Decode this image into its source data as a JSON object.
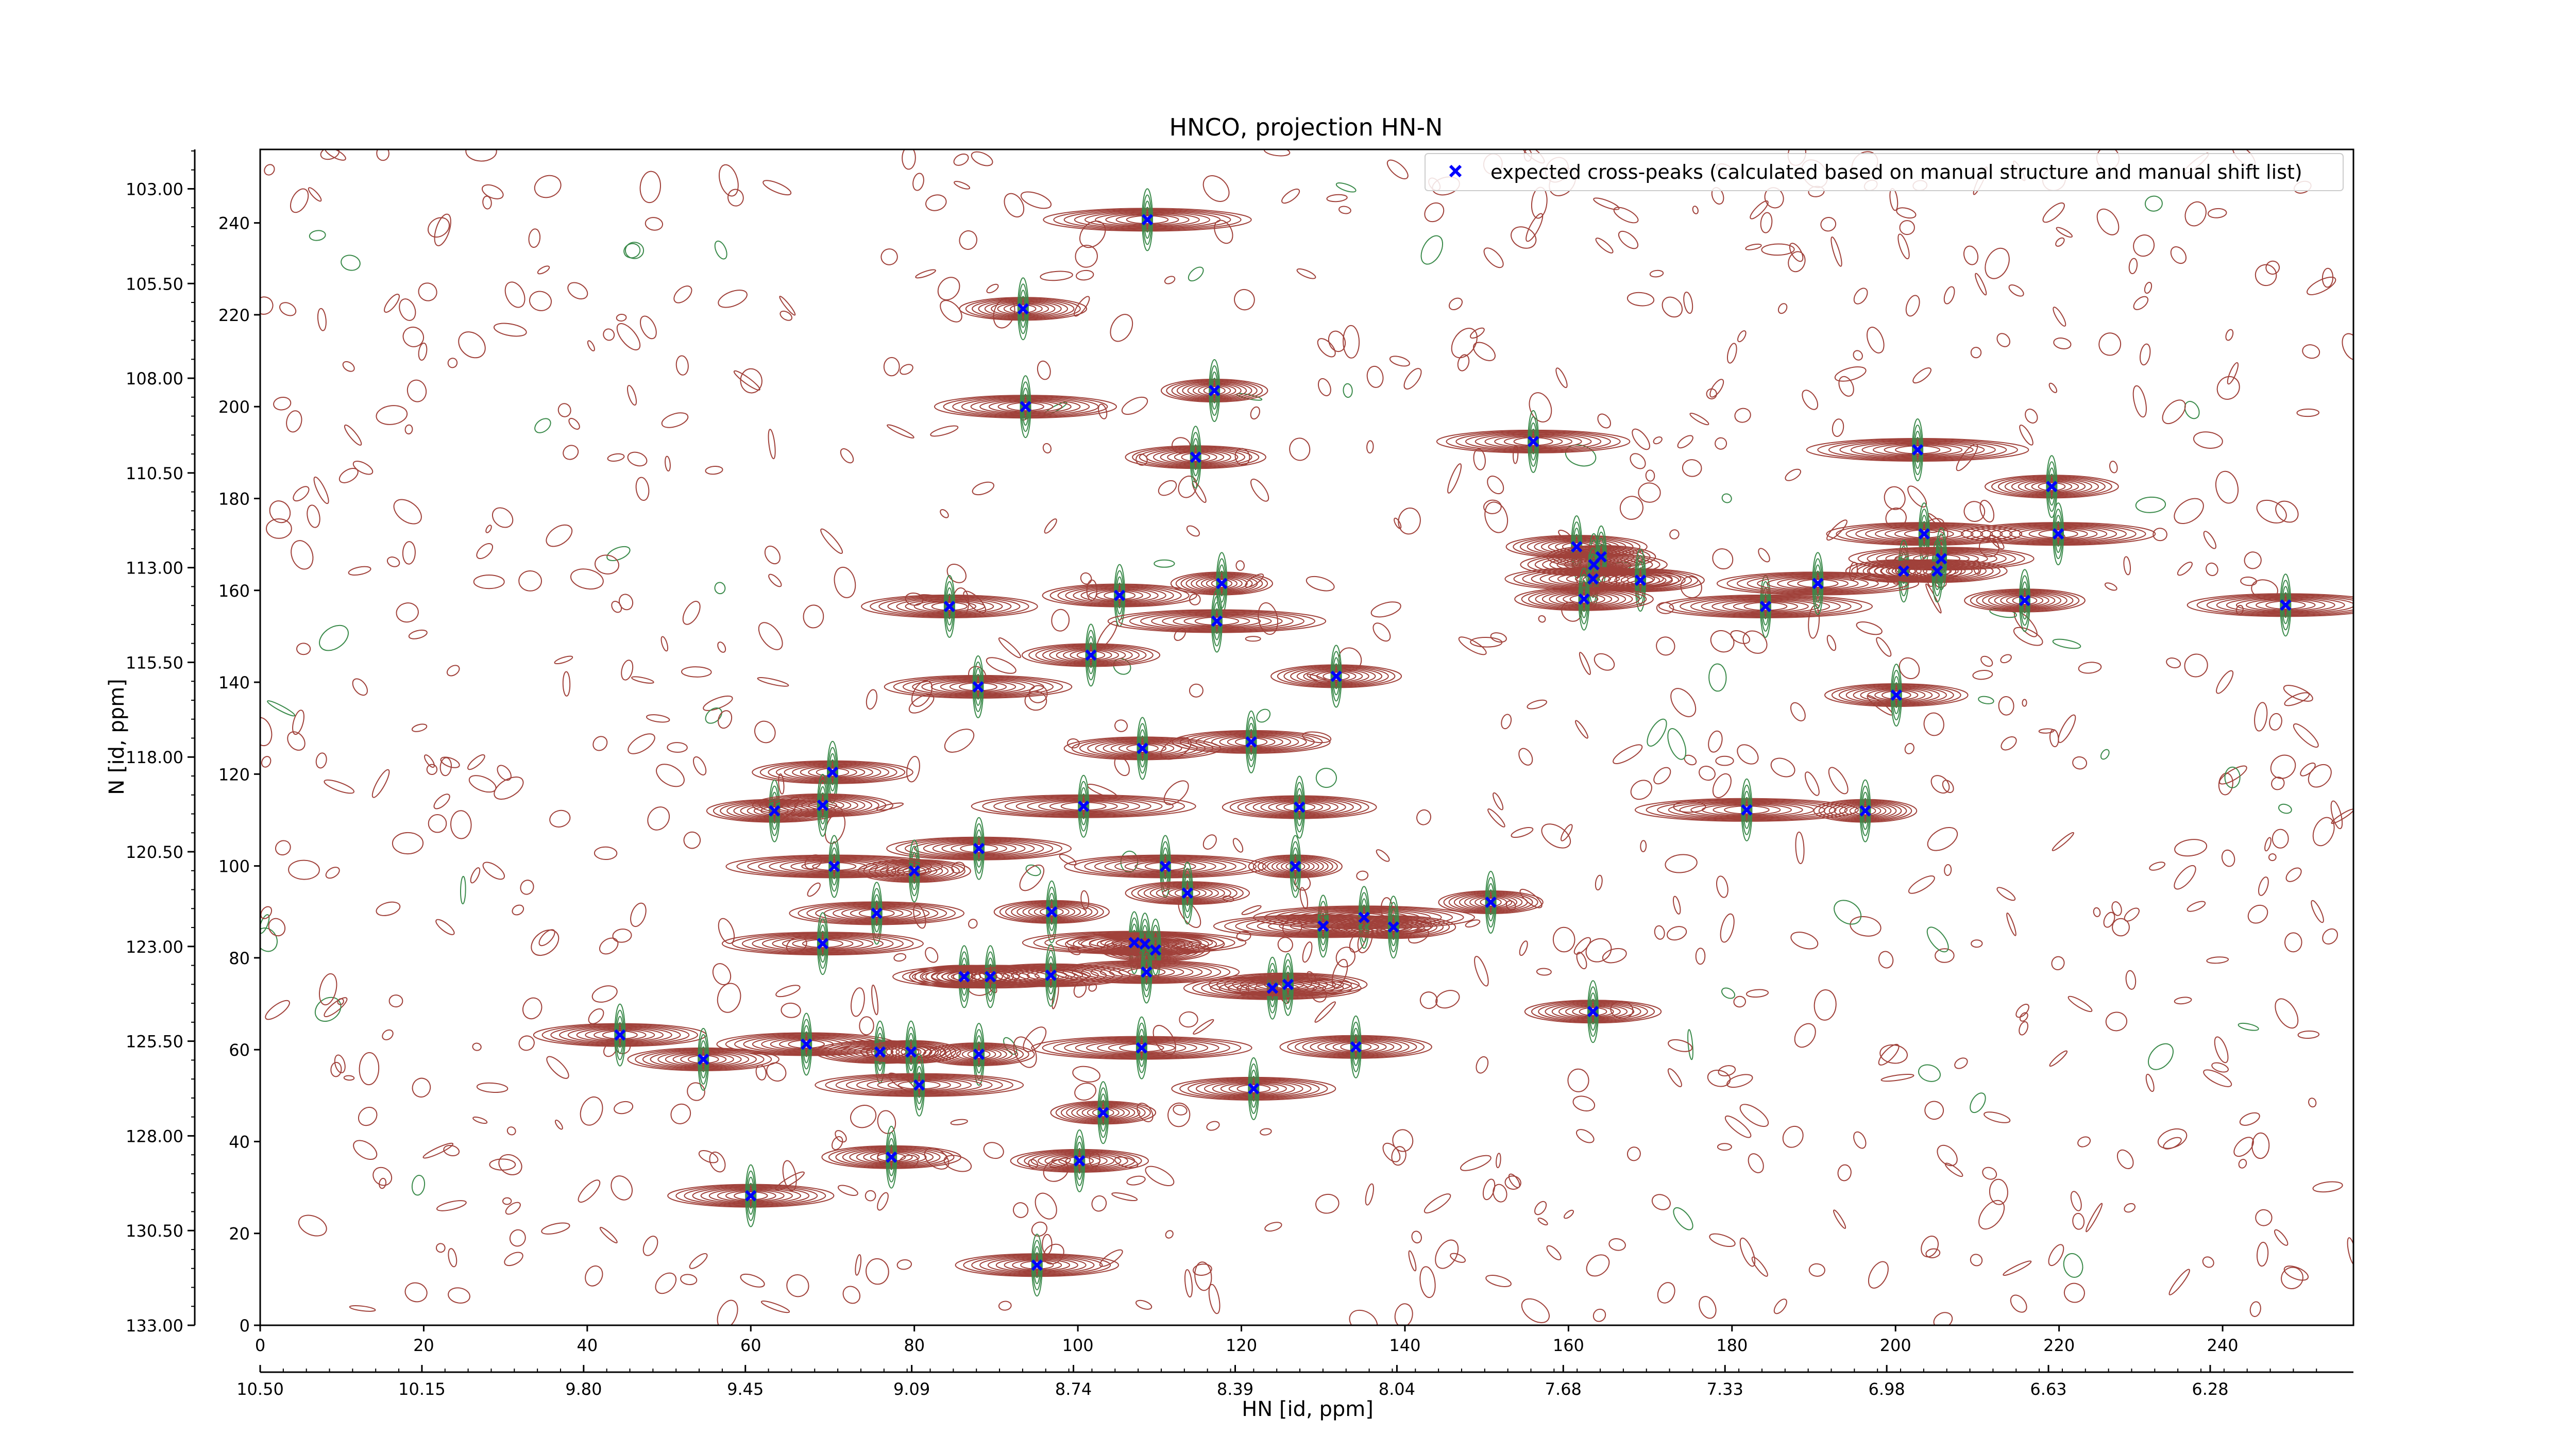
{
  "chart_data": {
    "type": "scatter",
    "title": "HNCO, projection HN-N",
    "xlabel": "HN [id, ppm]",
    "ylabel": "N [id, ppm]",
    "x_index_range": [
      0,
      256
    ],
    "y_index_range": [
      0,
      256
    ],
    "x_ppm_range": [
      10.5,
      5.97
    ],
    "y_ppm_range": [
      133.0,
      101.96
    ],
    "x_index_ticks": [
      "0",
      "20",
      "40",
      "60",
      "80",
      "100",
      "120",
      "140",
      "160",
      "180",
      "200",
      "220",
      "240"
    ],
    "x_ppm_ticks": [
      "10.50",
      "10.15",
      "9.80",
      "9.45",
      "9.09",
      "8.74",
      "8.39",
      "8.04",
      "7.68",
      "7.33",
      "6.98",
      "6.63",
      "6.28"
    ],
    "y_index_ticks": [
      "0",
      "20",
      "40",
      "60",
      "80",
      "100",
      "120",
      "140",
      "160",
      "180",
      "200",
      "220",
      "240"
    ],
    "y_ppm_ticks": [
      "133.00",
      "130.50",
      "128.00",
      "125.50",
      "123.00",
      "120.50",
      "118.00",
      "115.50",
      "113.00",
      "110.50",
      "108.00",
      "105.50",
      "103.00"
    ],
    "legend": {
      "placement": "top-right",
      "entries": [
        {
          "label": "expected cross-peaks (calculated based on manual structure and manual shift list)",
          "marker": "x",
          "color": "#0000ff"
        }
      ]
    },
    "series": [
      {
        "name": "expected cross-peaks (calculated based on manual structure and manual shift list)",
        "points": [
          [
            108.5,
            240.7
          ],
          [
            93.3,
            221.3
          ],
          [
            93.6,
            200.0
          ],
          [
            116.7,
            203.5
          ],
          [
            114.4,
            189.0
          ],
          [
            155.7,
            192.4
          ],
          [
            202.7,
            190.6
          ],
          [
            219.1,
            182.6
          ],
          [
            203.5,
            172.3
          ],
          [
            219.9,
            172.3
          ],
          [
            161.0,
            169.5
          ],
          [
            163.1,
            165.6
          ],
          [
            164.0,
            167.3
          ],
          [
            163.0,
            162.5
          ],
          [
            168.8,
            162.2
          ],
          [
            161.9,
            158.1
          ],
          [
            201.0,
            164.2
          ],
          [
            205.1,
            164.2
          ],
          [
            205.6,
            166.9
          ],
          [
            184.1,
            156.5
          ],
          [
            190.5,
            161.5
          ],
          [
            215.8,
            157.8
          ],
          [
            247.7,
            156.8
          ],
          [
            84.3,
            156.5
          ],
          [
            117.6,
            161.5
          ],
          [
            105.1,
            158.9
          ],
          [
            117.0,
            153.3
          ],
          [
            101.6,
            145.9
          ],
          [
            131.6,
            141.3
          ],
          [
            87.8,
            139.0
          ],
          [
            200.1,
            137.2
          ],
          [
            121.2,
            127.0
          ],
          [
            107.9,
            125.6
          ],
          [
            70.0,
            120.4
          ],
          [
            62.9,
            112.0
          ],
          [
            68.8,
            113.2
          ],
          [
            100.7,
            113.0
          ],
          [
            127.1,
            112.8
          ],
          [
            181.8,
            112.2
          ],
          [
            196.3,
            112.0
          ],
          [
            87.9,
            103.8
          ],
          [
            80.0,
            98.9
          ],
          [
            70.2,
            99.9
          ],
          [
            110.7,
            99.9
          ],
          [
            126.6,
            99.9
          ],
          [
            113.4,
            94.1
          ],
          [
            75.4,
            89.7
          ],
          [
            96.8,
            90.0
          ],
          [
            150.5,
            92.1
          ],
          [
            130.0,
            86.9
          ],
          [
            135.0,
            88.8
          ],
          [
            138.6,
            86.7
          ],
          [
            68.8,
            83.1
          ],
          [
            106.9,
            83.3
          ],
          [
            108.2,
            83.0
          ],
          [
            109.5,
            81.7
          ],
          [
            86.1,
            75.9
          ],
          [
            89.3,
            75.9
          ],
          [
            96.7,
            76.2
          ],
          [
            108.4,
            76.9
          ],
          [
            123.8,
            73.4
          ],
          [
            125.7,
            74.2
          ],
          [
            163.0,
            68.3
          ],
          [
            44.0,
            63.2
          ],
          [
            54.2,
            57.9
          ],
          [
            66.8,
            61.2
          ],
          [
            75.8,
            59.5
          ],
          [
            79.6,
            59.5
          ],
          [
            87.9,
            59.0
          ],
          [
            107.8,
            60.4
          ],
          [
            134.0,
            60.6
          ],
          [
            80.6,
            52.3
          ],
          [
            121.5,
            51.5
          ],
          [
            103.1,
            46.3
          ],
          [
            77.2,
            36.6
          ],
          [
            100.2,
            35.8
          ],
          [
            60.0,
            28.2
          ],
          [
            95.0,
            13.1
          ]
        ]
      }
    ],
    "spectrum_colors": {
      "positive_contours": "#a0413a",
      "negative_contours": "#3a8a4a",
      "peak_marker": "#0000ff"
    },
    "grid": false
  }
}
